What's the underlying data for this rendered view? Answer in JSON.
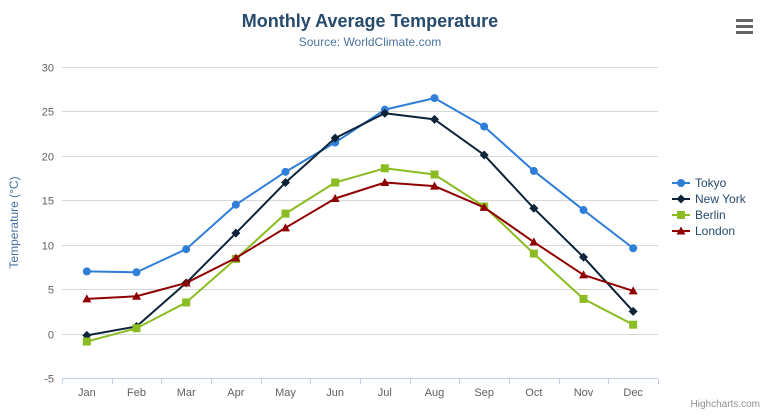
{
  "header": {
    "title": "Monthly Average Temperature",
    "subtitle": "Source: WorldClimate.com"
  },
  "toolbar": {
    "menu_icon": "hamburger-menu-icon"
  },
  "credits": {
    "label": "Highcharts.com"
  },
  "chart_data": {
    "type": "line",
    "title": "Monthly Average Temperature",
    "subtitle": "Source: WorldClimate.com",
    "categories": [
      "Jan",
      "Feb",
      "Mar",
      "Apr",
      "May",
      "Jun",
      "Jul",
      "Aug",
      "Sep",
      "Oct",
      "Nov",
      "Dec"
    ],
    "series": [
      {
        "name": "Tokyo",
        "color": "#2f7ed8",
        "marker": "circle",
        "values": [
          7.0,
          6.9,
          9.5,
          14.5,
          18.2,
          21.5,
          25.2,
          26.5,
          23.3,
          18.3,
          13.9,
          9.6
        ]
      },
      {
        "name": "New York",
        "color": "#0d233a",
        "marker": "diamond",
        "values": [
          -0.2,
          0.8,
          5.7,
          11.3,
          17.0,
          22.0,
          24.8,
          24.1,
          20.1,
          14.1,
          8.6,
          2.5
        ]
      },
      {
        "name": "Berlin",
        "color": "#8bbc21",
        "marker": "square",
        "values": [
          -0.9,
          0.6,
          3.5,
          8.4,
          13.5,
          17.0,
          18.6,
          17.9,
          14.3,
          9.0,
          3.9,
          1.0
        ]
      },
      {
        "name": "London",
        "color": "#910000",
        "marker": "triangle",
        "values": [
          3.9,
          4.2,
          5.7,
          8.5,
          11.9,
          15.2,
          17.0,
          16.6,
          14.2,
          10.3,
          6.6,
          4.8
        ]
      }
    ],
    "xlabel": "",
    "ylabel": "Temperature (°C)",
    "ylim": [
      -5,
      30
    ],
    "yticks": [
      -5,
      0,
      5,
      10,
      15,
      20,
      25,
      30
    ],
    "grid": true,
    "legend_position": "right",
    "colors": {
      "grid_line": "#d8d8d8",
      "axis_line": "#c0d0e0",
      "axis_label": "#606060",
      "axis_title": "#4572a7",
      "title_text": "#274b6d",
      "subtitle_text": "#4d759e",
      "legend_text": "#274b6d",
      "credits_text": "#909090"
    }
  }
}
